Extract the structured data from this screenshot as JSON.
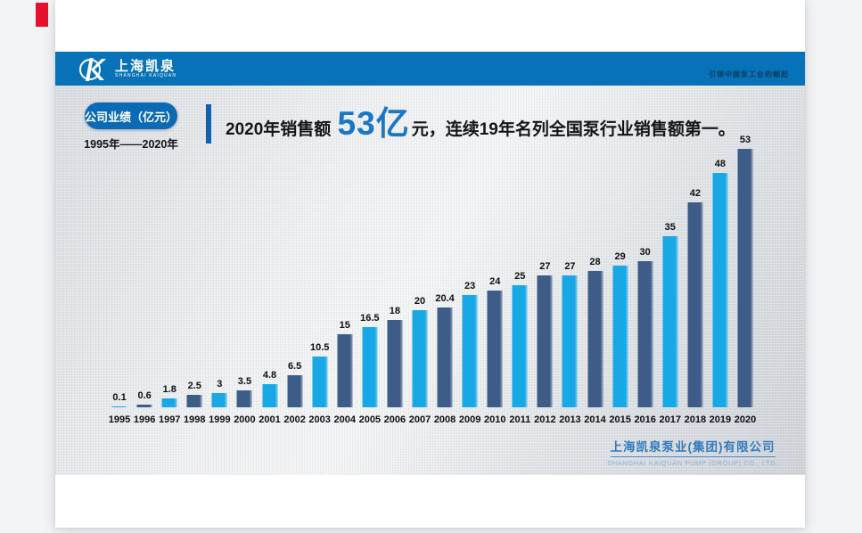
{
  "page": {
    "marker_color": "#e8112d"
  },
  "header": {
    "bg_color": "#0872b9",
    "logo": {
      "mark": "circle-k-monogram",
      "brand_cn": "上海凯泉",
      "brand_en": "SHANGHAI KAIQUAN"
    },
    "tagline": "引领中国泵工业的崛起"
  },
  "slide": {
    "badge_label": "公司业绩（亿元）",
    "period": "1995年——2020年",
    "headline": {
      "prefix": "2020年销售额 ",
      "highlight": "53亿",
      "suffix": "元，连续19年名列全国泵行业销售额第一。",
      "highlight_color": "#1b76c6"
    },
    "footer": {
      "company_cn": "上海凯泉泵业(集团)有限公司",
      "company_en": "SHANGHAI KAIQUAN PUMP (GROUP) CO., LTD."
    }
  },
  "chart_data": {
    "type": "bar",
    "title": "公司业绩（亿元）",
    "xlabel": "",
    "ylabel": "",
    "categories": [
      "1995",
      "1996",
      "1997",
      "1998",
      "1999",
      "2000",
      "2001",
      "2002",
      "2003",
      "2004",
      "2005",
      "2006",
      "2007",
      "2008",
      "2009",
      "2010",
      "2011",
      "2012",
      "2013",
      "2014",
      "2015",
      "2016",
      "2017",
      "2018",
      "2019",
      "2020"
    ],
    "values": [
      0.1,
      0.6,
      1.8,
      2.5,
      3,
      3.5,
      4.8,
      6.5,
      10.5,
      15,
      16.5,
      18,
      20,
      20.4,
      23,
      24,
      25,
      27,
      27,
      28,
      29,
      30,
      35,
      42,
      48,
      53
    ],
    "ylim": [
      0,
      53
    ],
    "grid": false,
    "legend": null,
    "data_labels": true,
    "bar_colors_alternating": [
      "#18a8e6",
      "#3e5c88"
    ],
    "color_note": "odd years cyan, even years slate blue"
  }
}
